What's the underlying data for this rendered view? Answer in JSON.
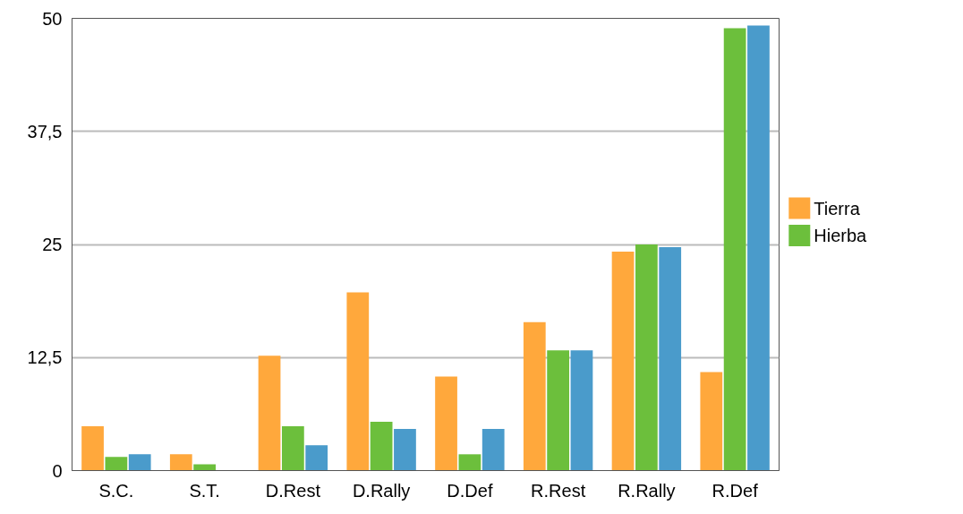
{
  "chart_data": {
    "type": "bar",
    "categories": [
      "S.C.",
      "S.T.",
      "D.Rest",
      "D.Rally",
      "D.Def",
      "R.Rest",
      "R.Rally",
      "R.Def"
    ],
    "series": [
      {
        "name": "Tierra",
        "color": "#ffa83c",
        "values": [
          4.9,
          1.8,
          12.7,
          19.7,
          10.4,
          16.4,
          24.2,
          10.9
        ]
      },
      {
        "name": "Hierba",
        "color": "#6cbf3c",
        "values": [
          1.5,
          0.7,
          4.9,
          5.4,
          1.8,
          13.3,
          25.0,
          48.9
        ]
      },
      {
        "color": "#4a9bcb",
        "values": [
          1.8,
          0,
          2.8,
          4.6,
          4.6,
          13.3,
          24.7,
          49.2
        ]
      }
    ],
    "ylim": [
      0,
      50
    ],
    "yticks": [
      0,
      {
        "value": 12.5,
        "label": "12,5"
      },
      25,
      {
        "value": 37.5,
        "label": "37,5"
      },
      50
    ],
    "grid": "y",
    "legend": "right"
  }
}
